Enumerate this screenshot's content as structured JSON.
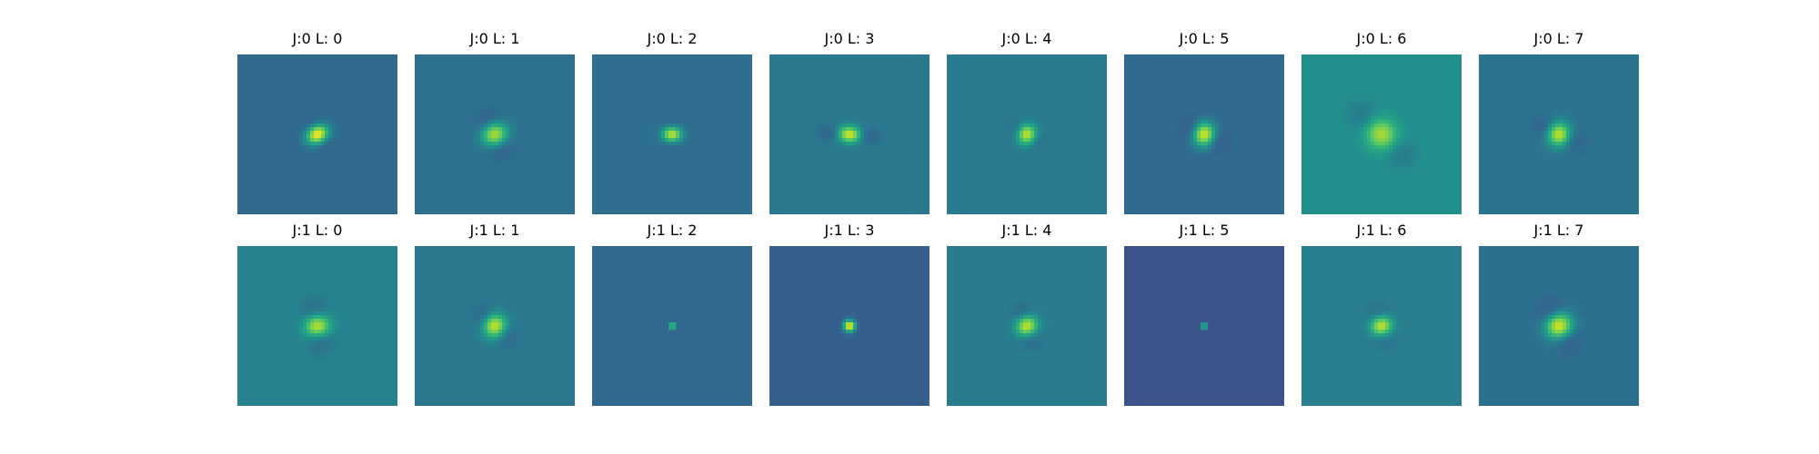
{
  "chart_data": {
    "type": "heatmap",
    "colormap": "viridis",
    "grid": false,
    "rows": 2,
    "cols": 8,
    "panels": [
      {
        "title": "J:0 L: 0",
        "j": 0,
        "l": 0,
        "background": "#2f6a8d",
        "sigma": 0.055,
        "theta": 60,
        "freq": 0.065,
        "aspect": 0.9,
        "amp": 1.0
      },
      {
        "title": "J:0 L: 1",
        "j": 0,
        "l": 1,
        "background": "#2d718e",
        "sigma": 0.075,
        "theta": 65,
        "freq": 0.06,
        "aspect": 0.75,
        "amp": 0.8
      },
      {
        "title": "J:0 L: 2",
        "j": 0,
        "l": 2,
        "background": "#2e6e8e",
        "sigma": 0.05,
        "theta": 90,
        "freq": 0.075,
        "aspect": 0.85,
        "amp": 0.85
      },
      {
        "title": "J:0 L: 3",
        "j": 0,
        "l": 3,
        "background": "#2a788e",
        "sigma": 0.09,
        "theta": 5,
        "freq": 0.06,
        "aspect": 0.4,
        "amp": 0.9
      },
      {
        "title": "J:0 L: 4",
        "j": 0,
        "l": 4,
        "background": "#297a8e",
        "sigma": 0.055,
        "theta": 30,
        "freq": 0.065,
        "aspect": 0.8,
        "amp": 0.85
      },
      {
        "title": "J:0 L: 5",
        "j": 0,
        "l": 5,
        "background": "#306a8e",
        "sigma": 0.07,
        "theta": 25,
        "freq": 0.06,
        "aspect": 0.75,
        "amp": 0.9
      },
      {
        "title": "J:0 L: 6",
        "j": 0,
        "l": 6,
        "background": "#21908d",
        "sigma": 0.12,
        "theta": 45,
        "freq": 0.045,
        "aspect": 0.55,
        "amp": 0.75
      },
      {
        "title": "J:0 L: 7",
        "j": 0,
        "l": 7,
        "background": "#2c738e",
        "sigma": 0.08,
        "theta": 25,
        "freq": 0.06,
        "aspect": 0.65,
        "amp": 0.85
      },
      {
        "title": "J:1 L: 0",
        "j": 1,
        "l": 0,
        "background": "#26828e",
        "sigma": 0.08,
        "theta": 80,
        "freq": 0.065,
        "aspect": 0.7,
        "amp": 0.8
      },
      {
        "title": "J:1 L: 1",
        "j": 1,
        "l": 1,
        "background": "#2a788e",
        "sigma": 0.075,
        "theta": 40,
        "freq": 0.06,
        "aspect": 0.7,
        "amp": 0.85
      },
      {
        "title": "J:1 L: 2",
        "j": 1,
        "l": 2,
        "background": "#31688e",
        "sigma": 0.012,
        "theta": 90,
        "freq": 0.15,
        "aspect": 1.0,
        "amp": 1.0
      },
      {
        "title": "J:1 L: 3",
        "j": 1,
        "l": 3,
        "background": "#355f8d",
        "sigma": 0.035,
        "theta": 20,
        "freq": 0.08,
        "aspect": 0.75,
        "amp": 1.0
      },
      {
        "title": "J:1 L: 4",
        "j": 1,
        "l": 4,
        "background": "#297b8e",
        "sigma": 0.065,
        "theta": 70,
        "freq": 0.065,
        "aspect": 0.75,
        "amp": 0.85
      },
      {
        "title": "J:1 L: 5",
        "j": 1,
        "l": 5,
        "background": "#3b528b",
        "sigma": 0.012,
        "theta": 0,
        "freq": 0.15,
        "aspect": 1.0,
        "amp": 1.0
      },
      {
        "title": "J:1 L: 6",
        "j": 1,
        "l": 6,
        "background": "#287d8e",
        "sigma": 0.06,
        "theta": 75,
        "freq": 0.065,
        "aspect": 0.8,
        "amp": 0.85
      },
      {
        "title": "J:1 L: 7",
        "j": 1,
        "l": 7,
        "background": "#2d708e",
        "sigma": 0.085,
        "theta": 60,
        "freq": 0.055,
        "aspect": 0.7,
        "amp": 0.9
      }
    ]
  }
}
